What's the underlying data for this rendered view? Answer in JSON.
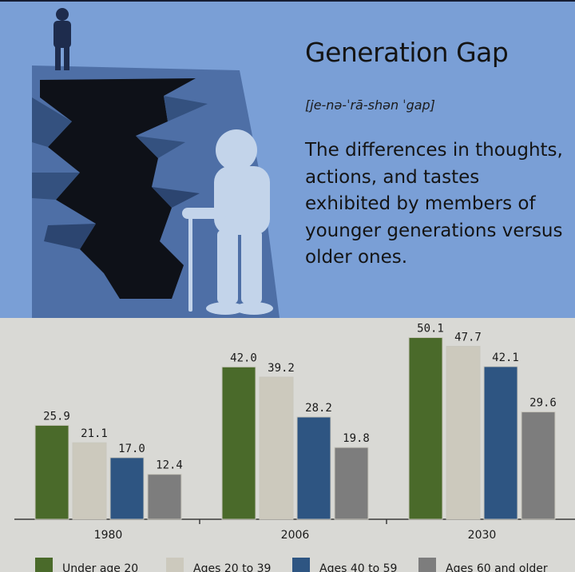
{
  "header": {
    "title": "Generation Gap",
    "pronunciation": "[je-nə-ˈrā-shən ˈgap]",
    "definition": "The differences in thoughts, actions, and tastes exhibited by members of younger generations versus older ones."
  },
  "colors": {
    "header_bg": "#7a9fd6",
    "chart_bg": "#d9d9d5",
    "series": [
      "#4a6a2a",
      "#ccc9bd",
      "#2e5582",
      "#7d7d7d"
    ]
  },
  "chart_data": {
    "type": "bar",
    "title": "",
    "xlabel": "",
    "ylabel": "",
    "categories": [
      "1980",
      "2006",
      "2030"
    ],
    "series": [
      {
        "name": "Under age 20",
        "values": [
          25.9,
          42.0,
          50.1
        ]
      },
      {
        "name": "Ages 20 to 39",
        "values": [
          21.1,
          39.2,
          47.7
        ]
      },
      {
        "name": "Ages 40 to 59",
        "values": [
          17.0,
          28.2,
          42.1
        ]
      },
      {
        "name": "Ages 60 and older",
        "values": [
          12.4,
          19.8,
          29.6
        ]
      }
    ],
    "data_labels": true,
    "grid": false,
    "legend_position": "bottom"
  }
}
